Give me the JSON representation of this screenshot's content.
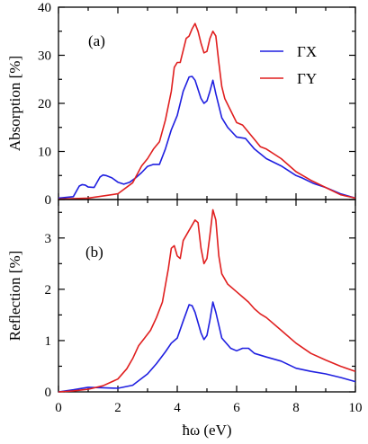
{
  "chart_data": [
    {
      "type": "line",
      "panel_label": "(a)",
      "ylabel": "Absorption [%]",
      "xlim": [
        0,
        10
      ],
      "ylim": [
        0,
        40
      ],
      "yticks": [
        0,
        10,
        20,
        30,
        40
      ],
      "xticks": [
        0,
        2,
        4,
        6,
        8,
        10
      ],
      "legend_position": "top-right",
      "series": [
        {
          "name": "ΓX",
          "color": "#1f1fe0",
          "points": [
            [
              0,
              0.3
            ],
            [
              0.5,
              0.6
            ],
            [
              0.7,
              2.8
            ],
            [
              0.8,
              3.1
            ],
            [
              0.9,
              3.0
            ],
            [
              1.0,
              2.6
            ],
            [
              1.2,
              2.5
            ],
            [
              1.4,
              4.7
            ],
            [
              1.5,
              5.1
            ],
            [
              1.6,
              5.0
            ],
            [
              1.8,
              4.5
            ],
            [
              2.0,
              3.6
            ],
            [
              2.2,
              3.2
            ],
            [
              2.4,
              3.6
            ],
            [
              2.6,
              4.5
            ],
            [
              2.8,
              5.6
            ],
            [
              3.0,
              6.9
            ],
            [
              3.2,
              7.3
            ],
            [
              3.4,
              7.3
            ],
            [
              3.6,
              10.5
            ],
            [
              3.8,
              14.5
            ],
            [
              4.0,
              17.5
            ],
            [
              4.2,
              22.5
            ],
            [
              4.4,
              25.5
            ],
            [
              4.5,
              25.6
            ],
            [
              4.6,
              24.8
            ],
            [
              4.8,
              21.0
            ],
            [
              4.9,
              20.0
            ],
            [
              5.0,
              20.5
            ],
            [
              5.1,
              22.5
            ],
            [
              5.2,
              24.8
            ],
            [
              5.3,
              22.0
            ],
            [
              5.5,
              17.0
            ],
            [
              5.7,
              15.0
            ],
            [
              6.0,
              13.0
            ],
            [
              6.3,
              12.7
            ],
            [
              6.6,
              10.5
            ],
            [
              7.0,
              8.5
            ],
            [
              7.5,
              7.0
            ],
            [
              8.0,
              5.0
            ],
            [
              8.2,
              4.5
            ],
            [
              8.6,
              3.3
            ],
            [
              9.0,
              2.5
            ],
            [
              9.5,
              1.2
            ],
            [
              10,
              0.3
            ]
          ]
        },
        {
          "name": "ΓY",
          "color": "#e01f1f",
          "points": [
            [
              0,
              0.1
            ],
            [
              1.0,
              0.3
            ],
            [
              2.0,
              1.2
            ],
            [
              2.5,
              3.5
            ],
            [
              2.8,
              7.0
            ],
            [
              3.0,
              8.5
            ],
            [
              3.2,
              10.5
            ],
            [
              3.4,
              12.0
            ],
            [
              3.6,
              16.5
            ],
            [
              3.8,
              22.5
            ],
            [
              3.9,
              27.5
            ],
            [
              4.0,
              28.5
            ],
            [
              4.1,
              28.5
            ],
            [
              4.2,
              31.0
            ],
            [
              4.3,
              33.5
            ],
            [
              4.4,
              34.0
            ],
            [
              4.5,
              35.5
            ],
            [
              4.6,
              36.6
            ],
            [
              4.7,
              35.0
            ],
            [
              4.8,
              32.5
            ],
            [
              4.9,
              30.5
            ],
            [
              5.0,
              30.8
            ],
            [
              5.1,
              33.5
            ],
            [
              5.2,
              35.0
            ],
            [
              5.3,
              34.0
            ],
            [
              5.4,
              28.5
            ],
            [
              5.5,
              23.5
            ],
            [
              5.6,
              21.0
            ],
            [
              5.8,
              18.5
            ],
            [
              6.0,
              16.0
            ],
            [
              6.2,
              15.5
            ],
            [
              6.4,
              14.0
            ],
            [
              6.6,
              12.5
            ],
            [
              6.8,
              11.0
            ],
            [
              7.0,
              10.5
            ],
            [
              7.5,
              8.5
            ],
            [
              8.0,
              5.8
            ],
            [
              8.5,
              4.0
            ],
            [
              9.0,
              2.5
            ],
            [
              9.5,
              1.0
            ],
            [
              10,
              0.3
            ]
          ]
        }
      ]
    },
    {
      "type": "line",
      "panel_label": "(b)",
      "ylabel": "Reflection [%]",
      "xlabel": "ħω (eV)",
      "xlim": [
        0,
        10
      ],
      "ylim": [
        0,
        3.75
      ],
      "yticks": [
        0,
        1,
        2,
        3
      ],
      "xticks": [
        0,
        2,
        4,
        6,
        8,
        10
      ],
      "series": [
        {
          "name": "ΓX",
          "color": "#1f1fe0",
          "points": [
            [
              0,
              0.0
            ],
            [
              0.5,
              0.04
            ],
            [
              1.0,
              0.09
            ],
            [
              1.5,
              0.08
            ],
            [
              2.0,
              0.07
            ],
            [
              2.5,
              0.13
            ],
            [
              3.0,
              0.35
            ],
            [
              3.3,
              0.55
            ],
            [
              3.6,
              0.78
            ],
            [
              3.8,
              0.95
            ],
            [
              4.0,
              1.05
            ],
            [
              4.2,
              1.38
            ],
            [
              4.4,
              1.7
            ],
            [
              4.5,
              1.68
            ],
            [
              4.6,
              1.55
            ],
            [
              4.8,
              1.15
            ],
            [
              4.9,
              1.02
            ],
            [
              5.0,
              1.1
            ],
            [
              5.1,
              1.4
            ],
            [
              5.2,
              1.75
            ],
            [
              5.3,
              1.55
            ],
            [
              5.5,
              1.05
            ],
            [
              5.8,
              0.85
            ],
            [
              6.0,
              0.8
            ],
            [
              6.2,
              0.85
            ],
            [
              6.4,
              0.85
            ],
            [
              6.6,
              0.75
            ],
            [
              7.0,
              0.68
            ],
            [
              7.5,
              0.6
            ],
            [
              8.0,
              0.46
            ],
            [
              8.5,
              0.4
            ],
            [
              9.0,
              0.35
            ],
            [
              9.5,
              0.28
            ],
            [
              10,
              0.2
            ]
          ]
        },
        {
          "name": "ΓY",
          "color": "#e01f1f",
          "points": [
            [
              0,
              0.0
            ],
            [
              0.5,
              0.02
            ],
            [
              1.0,
              0.05
            ],
            [
              1.5,
              0.12
            ],
            [
              2.0,
              0.25
            ],
            [
              2.3,
              0.45
            ],
            [
              2.5,
              0.65
            ],
            [
              2.7,
              0.9
            ],
            [
              2.9,
              1.05
            ],
            [
              3.1,
              1.2
            ],
            [
              3.3,
              1.45
            ],
            [
              3.5,
              1.75
            ],
            [
              3.7,
              2.4
            ],
            [
              3.8,
              2.8
            ],
            [
              3.9,
              2.85
            ],
            [
              4.0,
              2.65
            ],
            [
              4.1,
              2.6
            ],
            [
              4.2,
              2.95
            ],
            [
              4.4,
              3.15
            ],
            [
              4.6,
              3.35
            ],
            [
              4.7,
              3.3
            ],
            [
              4.8,
              2.8
            ],
            [
              4.9,
              2.5
            ],
            [
              5.0,
              2.6
            ],
            [
              5.1,
              3.05
            ],
            [
              5.2,
              3.55
            ],
            [
              5.3,
              3.35
            ],
            [
              5.4,
              2.65
            ],
            [
              5.5,
              2.3
            ],
            [
              5.7,
              2.1
            ],
            [
              6.0,
              1.95
            ],
            [
              6.2,
              1.85
            ],
            [
              6.4,
              1.75
            ],
            [
              6.6,
              1.62
            ],
            [
              6.8,
              1.52
            ],
            [
              7.0,
              1.45
            ],
            [
              7.5,
              1.2
            ],
            [
              8.0,
              0.95
            ],
            [
              8.5,
              0.75
            ],
            [
              9.0,
              0.62
            ],
            [
              9.5,
              0.5
            ],
            [
              10,
              0.4
            ]
          ]
        }
      ]
    }
  ]
}
